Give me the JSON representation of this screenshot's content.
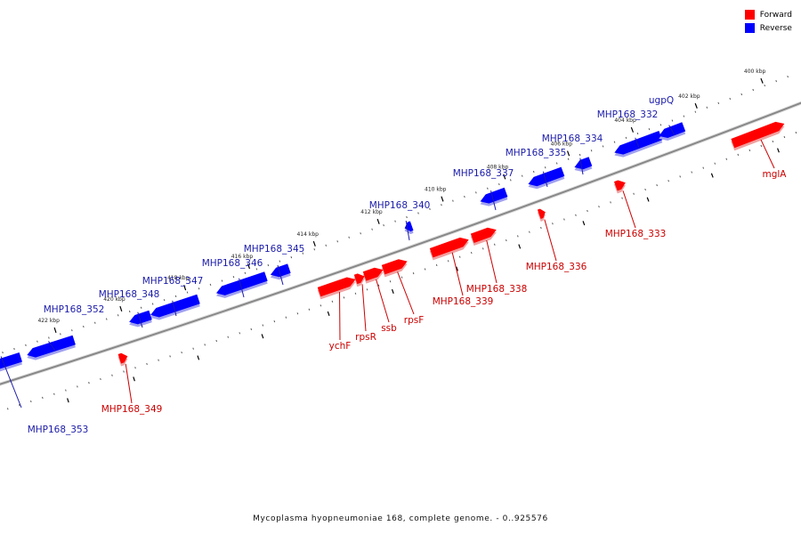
{
  "caption": "Mycoplasma hyopneumoniae 168, complete genome. - 0..925576",
  "legend": [
    {
      "label": "Forward",
      "color": "#ff0000"
    },
    {
      "label": "Reverse",
      "color": "#0000ff"
    }
  ],
  "colors": {
    "forward": "#ff0000",
    "reverse": "#0000ff",
    "backbone": "#888888",
    "forward_label": "#cc0000",
    "reverse_label": "#1b1baa"
  },
  "ticks": [
    "400 kbp",
    "402 kbp",
    "404 kbp",
    "406 kbp",
    "408 kbp",
    "410 kbp",
    "412 kbp",
    "414 kbp",
    "416 kbp",
    "418 kbp",
    "420 kbp",
    "422 kbp"
  ],
  "genes": [
    {
      "name": "mglA",
      "strand": "forward"
    },
    {
      "name": "MHP168_332",
      "strand": "reverse"
    },
    {
      "name": "ugpQ",
      "strand": "reverse"
    },
    {
      "name": "MHP168_333",
      "strand": "forward"
    },
    {
      "name": "MHP168_334",
      "strand": "reverse"
    },
    {
      "name": "MHP168_335",
      "strand": "reverse"
    },
    {
      "name": "MHP168_336",
      "strand": "forward"
    },
    {
      "name": "MHP168_337",
      "strand": "reverse"
    },
    {
      "name": "MHP168_338",
      "strand": "forward"
    },
    {
      "name": "MHP168_339",
      "strand": "forward"
    },
    {
      "name": "MHP168_340",
      "strand": "reverse"
    },
    {
      "name": "rpsF",
      "strand": "forward"
    },
    {
      "name": "ssb",
      "strand": "forward"
    },
    {
      "name": "rpsR",
      "strand": "forward"
    },
    {
      "name": "ychF",
      "strand": "forward"
    },
    {
      "name": "MHP168_345",
      "strand": "reverse"
    },
    {
      "name": "MHP168_346",
      "strand": "reverse"
    },
    {
      "name": "MHP168_347",
      "strand": "reverse"
    },
    {
      "name": "MHP168_348",
      "strand": "reverse"
    },
    {
      "name": "MHP168_349",
      "strand": "forward"
    },
    {
      "name": "MHP168_352",
      "strand": "reverse"
    },
    {
      "name": "MHP168_353",
      "strand": "reverse"
    }
  ]
}
